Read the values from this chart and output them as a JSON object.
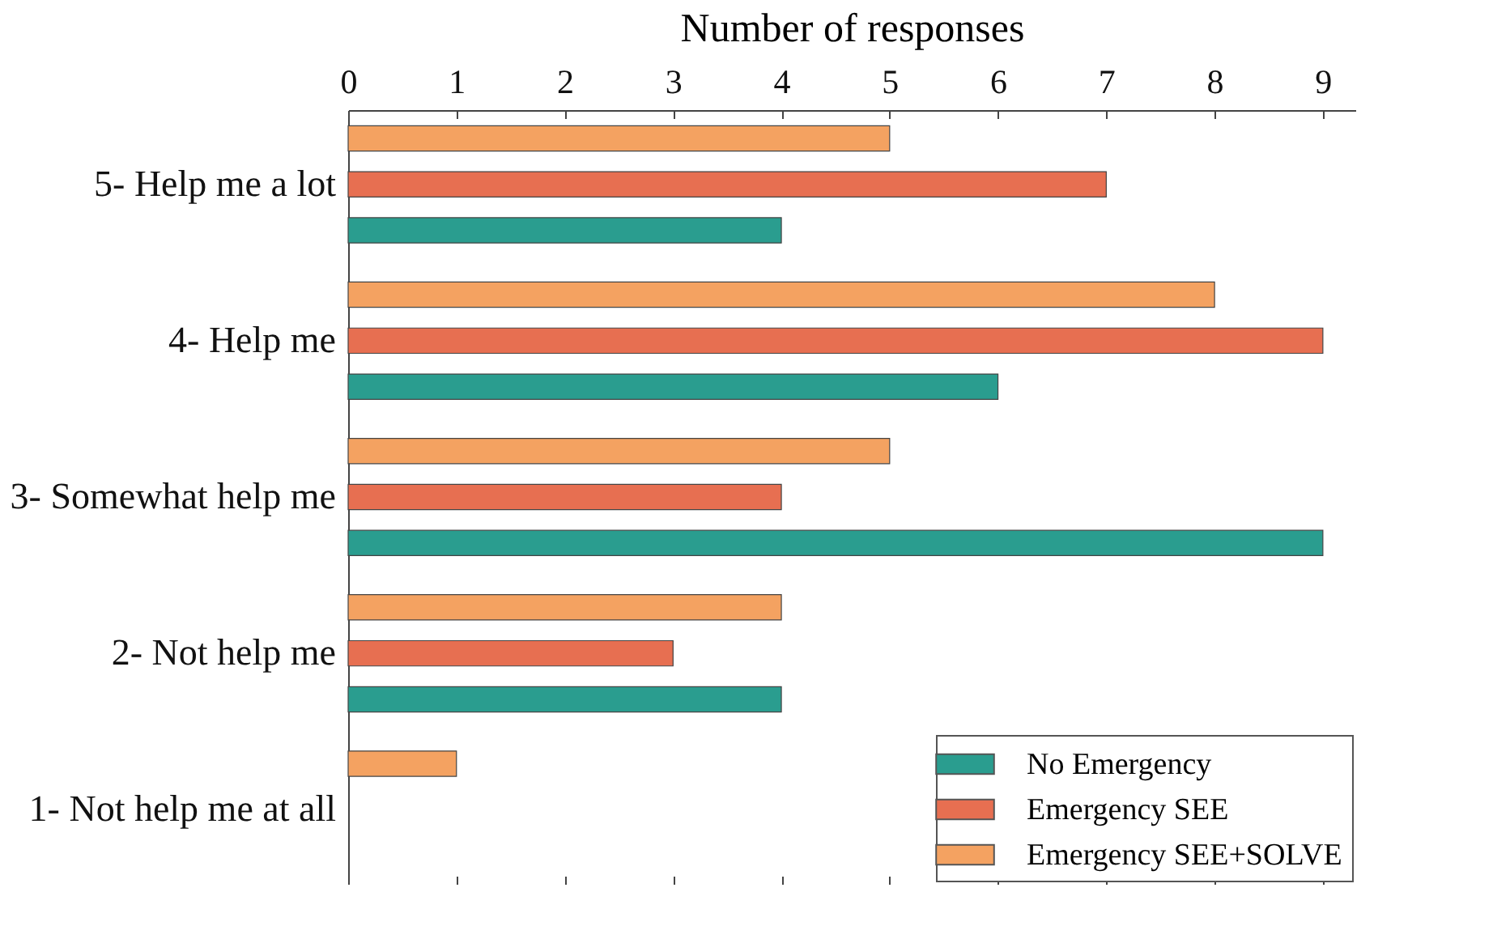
{
  "chart_data": {
    "type": "bar",
    "orientation": "horizontal",
    "xlabel": "Number of responses",
    "categories": [
      "5- Help me a lot",
      "4- Help me",
      "3- Somewhat help me",
      "2- Not help me",
      "1- Not help me at all"
    ],
    "series": [
      {
        "name": "No Emergency",
        "color": "#2a9d8f",
        "values": [
          4,
          6,
          9,
          4,
          0
        ]
      },
      {
        "name": "Emergency SEE",
        "color": "#e76f51",
        "values": [
          7,
          9,
          4,
          3,
          0
        ]
      },
      {
        "name": "Emergency SEE+SOLVE",
        "color": "#f4a261",
        "values": [
          5,
          8,
          5,
          4,
          1
        ]
      }
    ],
    "xlim": [
      0,
      9.3
    ],
    "xticks": [
      0,
      1,
      2,
      3,
      4,
      5,
      6,
      7,
      8,
      9
    ],
    "grid": false,
    "legend": "bottom right"
  }
}
